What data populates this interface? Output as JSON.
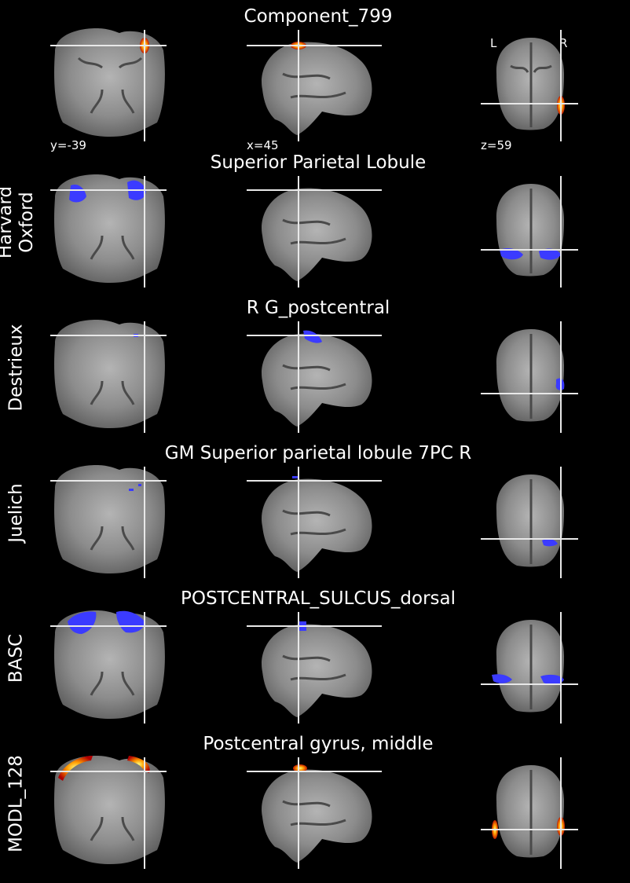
{
  "colors": {
    "background": "#000000",
    "text": "#ffffff",
    "crosshair": "#e8e8e8",
    "atlas_region": "#3b3bff",
    "hot_low": "#b30000",
    "hot_mid": "#ff7a00",
    "hot_high": "#ffff66"
  },
  "orientation_labels": {
    "left": "L",
    "right": "R"
  },
  "cut_coords": {
    "coronal": "y=-39",
    "sagittal": "x=45",
    "axial": "z=59"
  },
  "rows": [
    {
      "title": "Component_799",
      "label": [],
      "overlay": "hot"
    },
    {
      "title": "Superior Parietal Lobule",
      "label": [
        "Harvard",
        "Oxford"
      ],
      "overlay": "atlas"
    },
    {
      "title": "R G_postcentral",
      "label": [
        "Destrieux"
      ],
      "overlay": "atlas"
    },
    {
      "title": "GM Superior parietal lobule 7PC R",
      "label": [
        "Juelich"
      ],
      "overlay": "atlas"
    },
    {
      "title": "POSTCENTRAL_SULCUS_dorsal",
      "label": [
        "BASC"
      ],
      "overlay": "atlas"
    },
    {
      "title": "Postcentral gyrus, middle",
      "label": [
        "MODL_128"
      ],
      "overlay": "hot"
    }
  ]
}
